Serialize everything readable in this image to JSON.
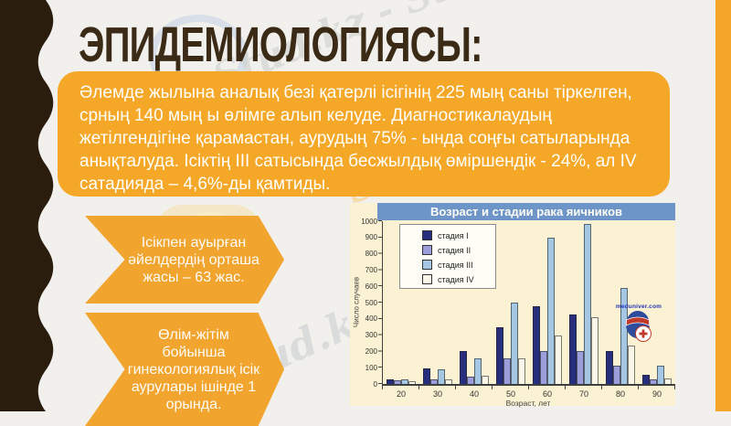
{
  "slide": {
    "title": "ЭПИДЕМИОЛОГИЯСЫ:",
    "body_text": "Әлемде жылына аналық безі қатерлі ісігінің 225 мың  саны тіркелген, срның 140 мың ы өлімге алып келуде. Диагностикалаудың жетілгендігіне қарамастан,  аурудың 75% - ында соңғы сатыларында анықталуда. Ісіктің ІІІ сатысында бесжылдық  өміршендік - 24%, ал IV сатадияда – 4,6%-ды қамтиды.",
    "callouts": [
      "Ісікпен ауырған әйелдердің орташа жасы – 63 жас.",
      "Өлім-жітім бойынша гинекологиялық ісік аурулары ішінде 1 орында."
    ],
    "accent_orange": "#F5A728",
    "sidebar_brown": "#2B1D0D",
    "background": "#F1F0ED"
  },
  "watermarks": {
    "top": "Stud.kz - Stud.kz",
    "gold": "Stud.kz",
    "middle": "Stud.kz - Stud.kz"
  },
  "chart_data": {
    "type": "bar",
    "title": "Возраст и стадии рака яичников",
    "xlabel": "Возраст, лет",
    "ylabel": "Число случаев",
    "categories": [
      "20",
      "30",
      "40",
      "50",
      "60",
      "70",
      "80",
      "90"
    ],
    "series": [
      {
        "name": "стадия I",
        "color": "#272E7D",
        "values": [
          30,
          95,
          200,
          350,
          480,
          425,
          200,
          55
        ]
      },
      {
        "name": "стадия II",
        "color": "#9B9EDA",
        "values": [
          20,
          30,
          45,
          155,
          200,
          200,
          115,
          30
        ]
      },
      {
        "name": "стадия III",
        "color": "#A6C7E4",
        "values": [
          30,
          90,
          155,
          500,
          900,
          985,
          590,
          110
        ]
      },
      {
        "name": "стадия IV",
        "color": "#FBF7E8",
        "values": [
          15,
          30,
          50,
          155,
          300,
          410,
          235,
          35
        ]
      }
    ],
    "ylim": [
      0,
      1000
    ],
    "ytick_step": 100,
    "yticks": [
      "0",
      "100",
      "200",
      "300",
      "400",
      "500",
      "600",
      "700",
      "800",
      "900",
      "1000"
    ],
    "grid": false,
    "legend_position": "upper-left",
    "title_bar_color": "#6E95C8",
    "plot_background": "#FAF2D2",
    "logo_text": "meduniver.com"
  }
}
